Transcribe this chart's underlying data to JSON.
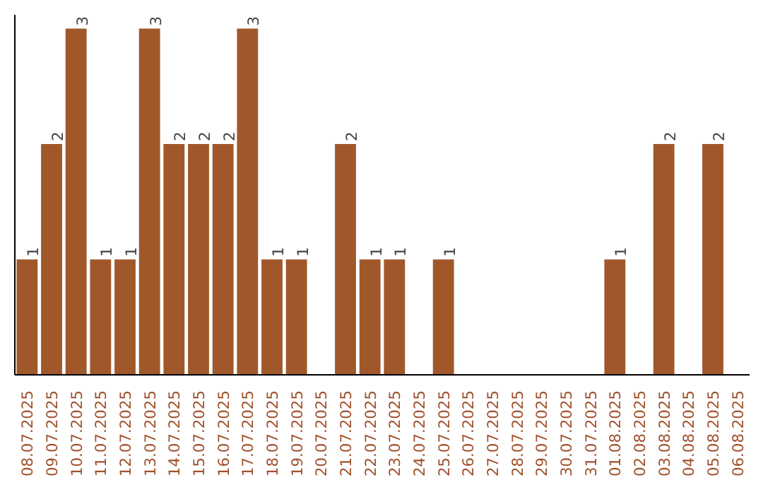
{
  "chart_data": {
    "type": "bar",
    "categories": [
      "08.07.2025",
      "09.07.2025",
      "10.07.2025",
      "11.07.2025",
      "12.07.2025",
      "13.07.2025",
      "14.07.2025",
      "15.07.2025",
      "16.07.2025",
      "17.07.2025",
      "18.07.2025",
      "19.07.2025",
      "20.07.2025",
      "21.07.2025",
      "22.07.2025",
      "23.07.2025",
      "24.07.2025",
      "25.07.2025",
      "26.07.2025",
      "27.07.2025",
      "28.07.2025",
      "29.07.2025",
      "30.07.2025",
      "31.07.2025",
      "01.08.2025",
      "02.08.2025",
      "03.08.2025",
      "04.08.2025",
      "05.08.2025",
      "06.08.2025"
    ],
    "values": [
      1,
      2,
      3,
      1,
      1,
      3,
      2,
      2,
      2,
      3,
      1,
      1,
      0,
      2,
      1,
      1,
      0,
      1,
      0,
      0,
      0,
      0,
      0,
      0,
      1,
      0,
      2,
      0,
      2,
      0
    ],
    "value_labels": [
      "1",
      "2",
      "3",
      "1",
      "1",
      "3",
      "2",
      "2",
      "2",
      "3",
      "1",
      "1",
      null,
      "2",
      "1",
      "1",
      null,
      "1",
      null,
      null,
      null,
      null,
      null,
      null,
      "1",
      null,
      "2",
      null,
      "2",
      null
    ],
    "color": "#a0582a",
    "grid": false,
    "tick_labels": "x"
  }
}
